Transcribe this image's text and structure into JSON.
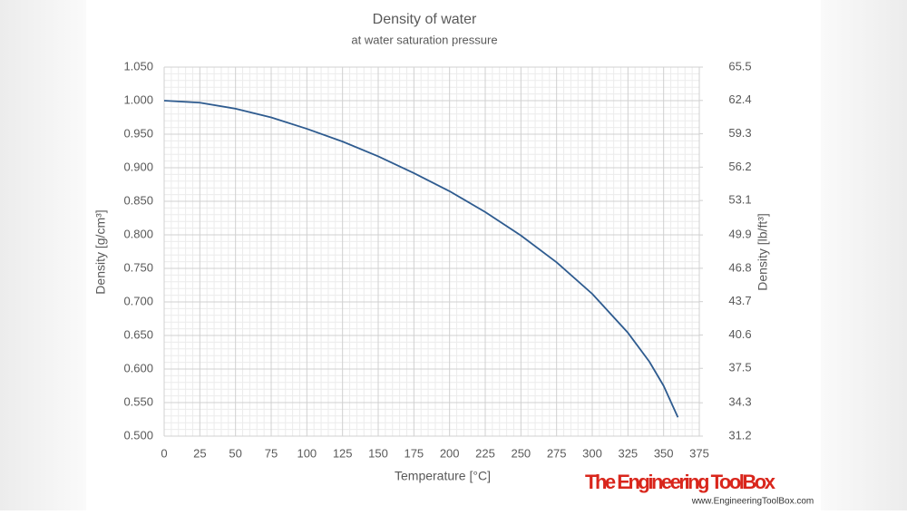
{
  "chart_data": {
    "type": "line",
    "title": "Density of water",
    "subtitle": "at water saturation pressure",
    "x_label": "Temperature [°C]",
    "y_label": "Density  [g/cm³]",
    "y2_label": "Density  [lb/ft³]",
    "x": [
      0,
      25,
      50,
      75,
      100,
      125,
      150,
      175,
      200,
      225,
      250,
      275,
      300,
      325,
      340,
      350,
      360
    ],
    "series": [
      {
        "name": "Density",
        "color": "#2e5b8f",
        "values": [
          1.0,
          0.997,
          0.988,
          0.975,
          0.958,
          0.939,
          0.917,
          0.892,
          0.865,
          0.834,
          0.799,
          0.759,
          0.712,
          0.654,
          0.611,
          0.575,
          0.528
        ]
      }
    ],
    "xlim": [
      0,
      375
    ],
    "xticks": [
      0,
      25,
      50,
      75,
      100,
      125,
      150,
      175,
      200,
      225,
      250,
      275,
      300,
      325,
      350,
      375
    ],
    "ylim": [
      0.5,
      1.05
    ],
    "yticks": [
      {
        "value": 0.5,
        "label": "0.500"
      },
      {
        "value": 0.55,
        "label": "0.550"
      },
      {
        "value": 0.6,
        "label": "0.600"
      },
      {
        "value": 0.65,
        "label": "0.650"
      },
      {
        "value": 0.7,
        "label": "0.700"
      },
      {
        "value": 0.75,
        "label": "0.750"
      },
      {
        "value": 0.8,
        "label": "0.800"
      },
      {
        "value": 0.85,
        "label": "0.850"
      },
      {
        "value": 0.9,
        "label": "0.900"
      },
      {
        "value": 0.95,
        "label": "0.950"
      },
      {
        "value": 1.0,
        "label": "1.000"
      },
      {
        "value": 1.05,
        "label": "1.050"
      }
    ],
    "y2lim": [
      31.2,
      65.5
    ],
    "y2ticks": [
      31.2,
      34.3,
      37.5,
      40.6,
      43.7,
      46.8,
      49.9,
      53.1,
      56.2,
      59.3,
      62.4,
      65.5
    ],
    "grid": true,
    "minor_grid": true,
    "logo": "The Engineering ToolBox",
    "website": "www.EngineeringToolBox.com"
  }
}
